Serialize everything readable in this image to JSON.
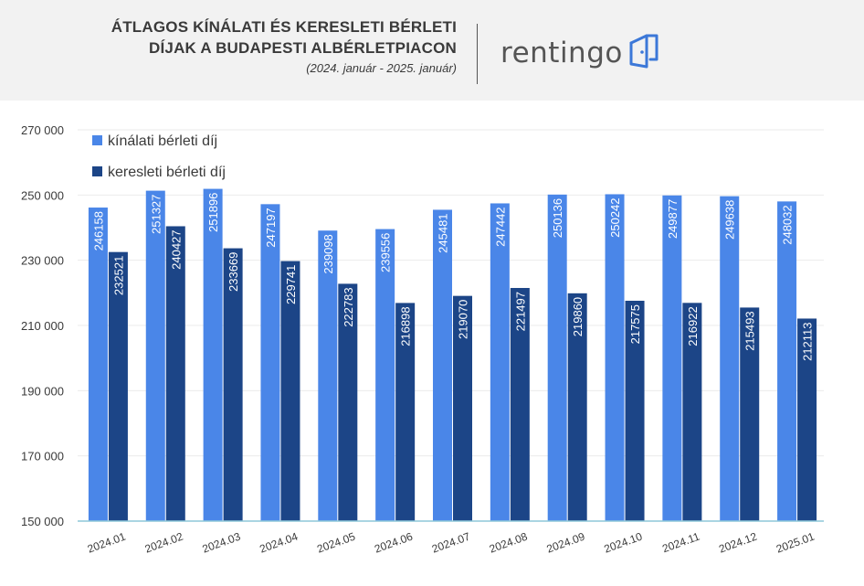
{
  "header": {
    "title_line1": "ÁTLAGOS KÍNÁLATI ÉS KERESLETI BÉRLETI",
    "title_line2": "DÍJAK A BUDAPESTI ALBÉRLETPIACON",
    "subtitle": "(2024. január - 2025. január)",
    "brand": "rentingo",
    "brand_icon": "door-icon"
  },
  "colors": {
    "offer": "#4A86E8",
    "demand": "#1C4587",
    "header_bg": "#f2f2f2",
    "axis_line": "#8dc7d8",
    "grid": "#ebebeb",
    "text": "#3a3a3a"
  },
  "chart_data": {
    "type": "bar",
    "categories": [
      "2024.01",
      "2024.02",
      "2024.03",
      "2024.04",
      "2024.05",
      "2024.06",
      "2024.07",
      "2024.08",
      "2024.09",
      "2024.10",
      "2024.11",
      "2024.12",
      "2025.01"
    ],
    "series": [
      {
        "name": "kínálati bérleti díj",
        "values": [
          246158,
          251327,
          251896,
          247197,
          239098,
          239556,
          245481,
          247442,
          250136,
          250242,
          249877,
          249638,
          248032
        ]
      },
      {
        "name": "keresleti bérleti díj",
        "values": [
          232521,
          240427,
          233669,
          229741,
          222783,
          216898,
          219070,
          221497,
          219860,
          217575,
          216922,
          215493,
          212113
        ]
      }
    ],
    "ylim": [
      150000,
      270000
    ],
    "yticks": [
      150000,
      170000,
      190000,
      210000,
      230000,
      250000,
      270000
    ],
    "ytick_labels": [
      "150 000",
      "170 000",
      "190 000",
      "210 000",
      "230 000",
      "250 000",
      "270 000"
    ],
    "grid": true,
    "legend_position": "top-left",
    "title": "",
    "xlabel": "",
    "ylabel": ""
  }
}
